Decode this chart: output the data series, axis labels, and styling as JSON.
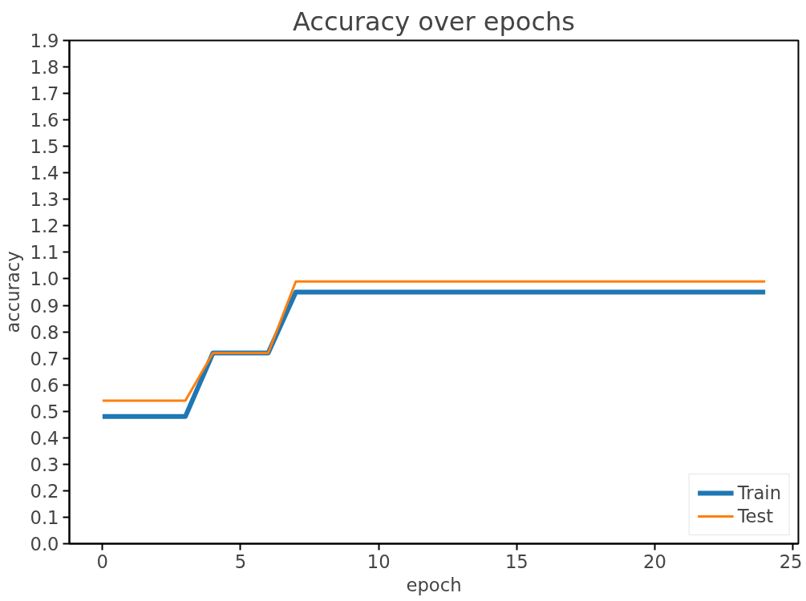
{
  "chart_data": {
    "type": "line",
    "title": "Accuracy over epochs",
    "xlabel": "epoch",
    "ylabel": "accuracy",
    "x": [
      0,
      1,
      2,
      3,
      4,
      5,
      6,
      7,
      8,
      9,
      10,
      11,
      12,
      13,
      14,
      15,
      16,
      17,
      18,
      19,
      20,
      21,
      22,
      23,
      24
    ],
    "series": [
      {
        "name": "Train",
        "color": "#1f77b4",
        "values": [
          0.48,
          0.48,
          0.48,
          0.48,
          0.72,
          0.72,
          0.72,
          0.95,
          0.95,
          0.95,
          0.95,
          0.95,
          0.95,
          0.95,
          0.95,
          0.95,
          0.95,
          0.95,
          0.95,
          0.95,
          0.95,
          0.95,
          0.95,
          0.95,
          0.95
        ]
      },
      {
        "name": "Test",
        "color": "#ff7f0e",
        "values": [
          0.54,
          0.54,
          0.54,
          0.54,
          0.72,
          0.72,
          0.72,
          0.99,
          0.99,
          0.99,
          0.99,
          0.99,
          0.99,
          0.99,
          0.99,
          0.99,
          0.99,
          0.99,
          0.99,
          0.99,
          0.99,
          0.99,
          0.99,
          0.99,
          0.99
        ]
      }
    ],
    "xlim": [
      -1.2,
      25.2
    ],
    "ylim": [
      0,
      1.9
    ],
    "xticks": [
      0,
      5,
      10,
      15,
      20,
      25
    ],
    "yticks": [
      {
        "value": 0.0,
        "label": "0.0"
      },
      {
        "value": 0.1,
        "label": "0.1"
      },
      {
        "value": 0.2,
        "label": "0.2"
      },
      {
        "value": 0.3,
        "label": "0.3"
      },
      {
        "value": 0.4,
        "label": "0.4"
      },
      {
        "value": 0.5,
        "label": "0.5"
      },
      {
        "value": 0.6,
        "label": "0.6"
      },
      {
        "value": 0.7,
        "label": "0.7"
      },
      {
        "value": 0.8,
        "label": "0.8"
      },
      {
        "value": 0.9,
        "label": "0.9"
      },
      {
        "value": 1.0,
        "label": "1.0"
      },
      {
        "value": 1.1,
        "label": "1.1"
      },
      {
        "value": 1.2,
        "label": "1.2"
      },
      {
        "value": 1.3,
        "label": "1.3"
      },
      {
        "value": 1.4,
        "label": "1.4"
      },
      {
        "value": 1.5,
        "label": "1.5"
      },
      {
        "value": 1.6,
        "label": "1.6"
      },
      {
        "value": 1.7,
        "label": "1.7"
      },
      {
        "value": 1.8,
        "label": "1.8"
      },
      {
        "value": 1.9,
        "label": "1.9"
      }
    ],
    "grid": false,
    "legend": "bottom right",
    "marker": "none",
    "line_style": "solid"
  }
}
